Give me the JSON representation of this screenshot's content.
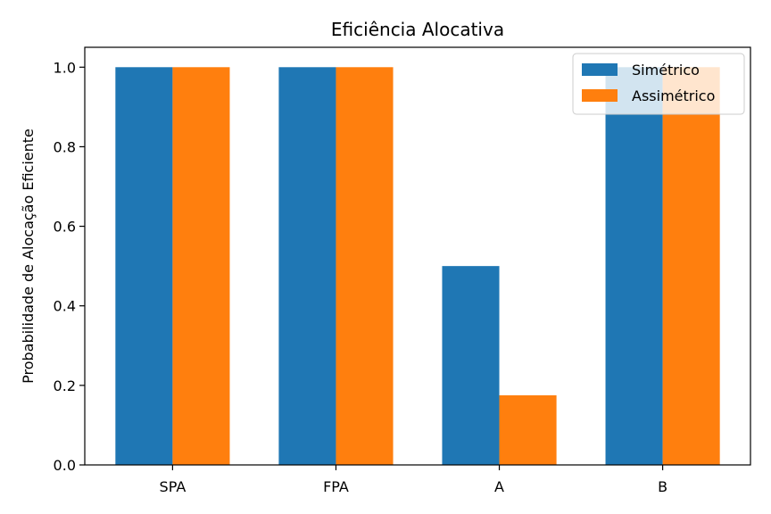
{
  "chart_data": {
    "type": "bar",
    "title": "Eficiência Alocativa",
    "xlabel": "",
    "ylabel": "Probabilidade de Alocação Eficiente",
    "categories": [
      "SPA",
      "FPA",
      "A",
      "B"
    ],
    "series": [
      {
        "name": "Simétrico",
        "color": "#1f77b4",
        "values": [
          1.0,
          1.0,
          0.5,
          1.0
        ]
      },
      {
        "name": "Assimétrico",
        "color": "#ff7f0e",
        "values": [
          1.0,
          1.0,
          0.175,
          1.0
        ]
      }
    ],
    "ylim": [
      0,
      1.05
    ],
    "yticks": [
      "0.0",
      "0.2",
      "0.4",
      "0.6",
      "0.8",
      "1.0"
    ],
    "grid": false,
    "legend_position": "top-right"
  }
}
